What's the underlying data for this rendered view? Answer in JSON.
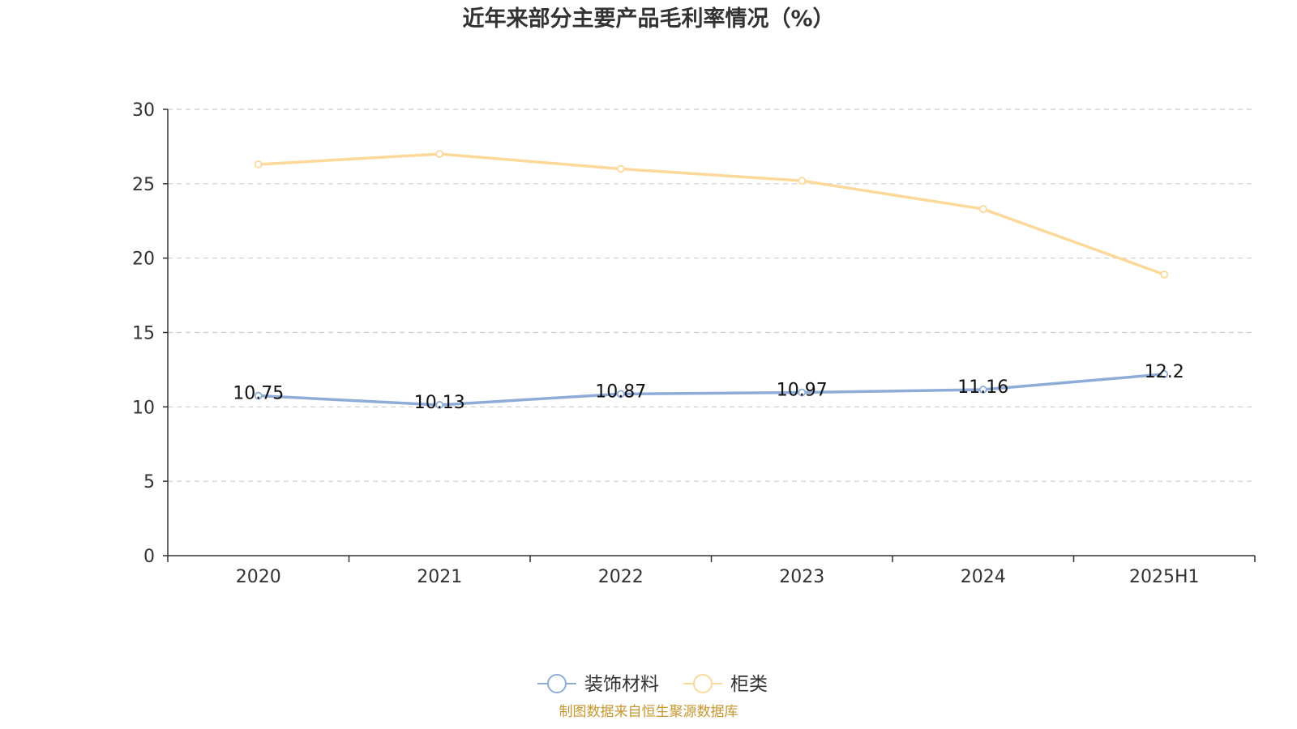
{
  "chart_data": {
    "type": "line",
    "title": "近年来部分主要产品毛利率情况（%）",
    "categories": [
      "2020",
      "2021",
      "2022",
      "2023",
      "2024",
      "2025H1"
    ],
    "ylim": [
      0,
      30
    ],
    "yticks": [
      "0",
      "5",
      "10",
      "15",
      "20",
      "25",
      "30"
    ],
    "grid": true,
    "legend_position": "bottom",
    "series": [
      {
        "name": "装饰材料",
        "color": "#8eacd8",
        "values": [
          10.75,
          10.13,
          10.87,
          10.97,
          11.16,
          12.2
        ],
        "labels": [
          "10.75",
          "10.13",
          "10.87",
          "10.97",
          "11.16",
          "12.2"
        ]
      },
      {
        "name": "柜类",
        "color": "#fcd99a",
        "values": [
          26.3,
          27.0,
          26.0,
          25.2,
          23.3,
          18.9
        ]
      }
    ],
    "source": "制图数据来自恒生聚源数据库"
  }
}
